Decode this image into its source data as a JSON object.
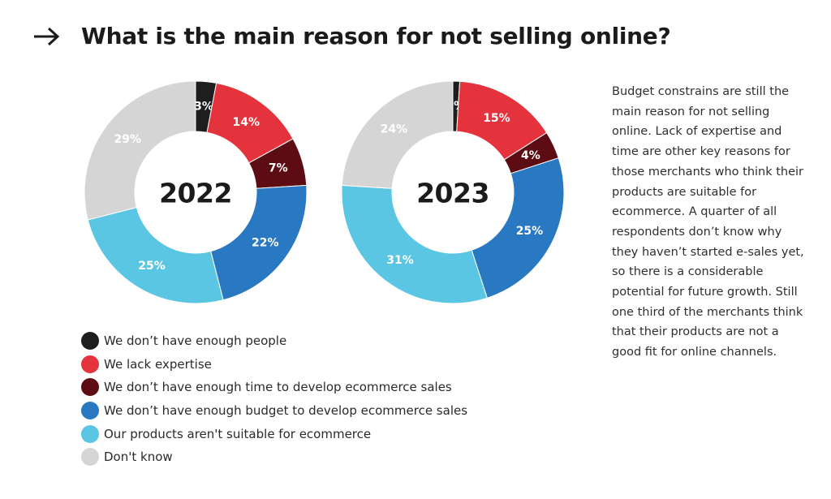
{
  "header": {
    "arrow_icon": "arrow-right-icon",
    "title": "What is the main reason for not selling online?"
  },
  "colors": {
    "people": "#1e1e1e",
    "expertise": "#e4333c",
    "time": "#5c0c12",
    "budget": "#2878c2",
    "unsuitable": "#5bc6e3",
    "dont_know": "#d5d5d5"
  },
  "legend": [
    {
      "key": "people",
      "label": "We don’t have enough people"
    },
    {
      "key": "expertise",
      "label": "We lack expertise"
    },
    {
      "key": "time",
      "label": "We don’t have enough time to develop ecommerce sales"
    },
    {
      "key": "budget",
      "label": "We don’t have enough budget to develop ecommerce sales"
    },
    {
      "key": "unsuitable",
      "label": "Our products aren't suitable for ecommerce"
    },
    {
      "key": "dont_know",
      "label": "Don't know"
    }
  ],
  "chart_data": [
    {
      "type": "pie",
      "donut": true,
      "center_label": "2022",
      "categories": [
        "We don’t have enough people",
        "We lack expertise",
        "We don’t have enough time to develop ecommerce sales",
        "We don’t have enough budget to develop ecommerce sales",
        "Our products aren't suitable for ecommerce",
        "Don't know"
      ],
      "values": [
        3,
        14,
        7,
        22,
        25,
        29
      ],
      "labels": [
        "3%",
        "14%",
        "7%",
        "22%",
        "25%",
        "29%"
      ],
      "keys": [
        "people",
        "expertise",
        "time",
        "budget",
        "unsuitable",
        "dont_know"
      ],
      "label_colors": [
        "#ffffff",
        "#ffffff",
        "#ffffff",
        "#ffffff",
        "#ffffff",
        "#ffffff"
      ]
    },
    {
      "type": "pie",
      "donut": true,
      "center_label": "2023",
      "categories": [
        "We don’t have enough people",
        "We lack expertise",
        "We don’t have enough time to develop ecommerce sales",
        "We don’t have enough budget to develop ecommerce sales",
        "Our products aren't suitable for ecommerce",
        "Don't know"
      ],
      "values": [
        1,
        15,
        4,
        25,
        31,
        24
      ],
      "labels": [
        "1%",
        "15%",
        "4%",
        "25%",
        "31%",
        "24%"
      ],
      "keys": [
        "people",
        "expertise",
        "time",
        "budget",
        "unsuitable",
        "dont_know"
      ],
      "label_colors": [
        "#ffffff",
        "#ffffff",
        "#ffffff",
        "#ffffff",
        "#ffffff",
        "#ffffff"
      ]
    }
  ],
  "commentary": "Budget constrains are still the main reason for not selling online. Lack of expertise and time are other key reasons for those merchants who think their products are suitable for ecommerce. A quarter of all respondents don’t know why they haven’t started e-sales yet, so there is a considerable potential for future growth. Still one third of the merchants think that their products are not a good fit for online channels."
}
